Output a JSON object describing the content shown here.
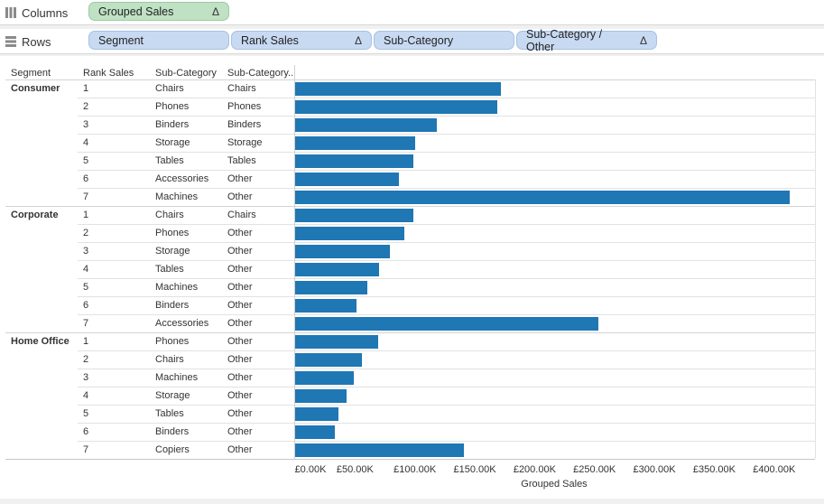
{
  "shelves": {
    "columns": {
      "label": "Columns",
      "pills": [
        {
          "label": "Grouped Sales",
          "delta": "Δ",
          "color": "green"
        }
      ]
    },
    "rows": {
      "label": "Rows",
      "pills": [
        {
          "label": "Segment",
          "delta": "",
          "color": "blue"
        },
        {
          "label": "Rank Sales",
          "delta": "Δ",
          "color": "blue"
        },
        {
          "label": "Sub-Category",
          "delta": "",
          "color": "blue"
        },
        {
          "label": "Sub-Category / Other",
          "delta": "Δ",
          "color": "blue"
        }
      ]
    }
  },
  "chart_data": {
    "type": "bar",
    "orientation": "horizontal",
    "bar_color": "#1f77b4",
    "row_headers": [
      "Segment",
      "Rank Sales",
      "Sub-Category",
      "Sub-Category.."
    ],
    "xlabel": "Grouped Sales",
    "xlim": [
      0,
      420000
    ],
    "x_ticks": [
      0,
      50000,
      100000,
      150000,
      200000,
      250000,
      300000,
      350000,
      400000
    ],
    "x_tick_labels": [
      "£0.00K",
      "£50.00K",
      "£100.00K",
      "£150.00K",
      "£200.00K",
      "£250.00K",
      "£300.00K",
      "£350.00K",
      "£400.00K"
    ],
    "grid": false,
    "segments": [
      {
        "name": "Consumer",
        "rows": [
          {
            "rank": "1",
            "subcategory": "Chairs",
            "group": "Chairs",
            "value": 172000
          },
          {
            "rank": "2",
            "subcategory": "Phones",
            "group": "Phones",
            "value": 169000
          },
          {
            "rank": "3",
            "subcategory": "Binders",
            "group": "Binders",
            "value": 118000
          },
          {
            "rank": "4",
            "subcategory": "Storage",
            "group": "Storage",
            "value": 100000
          },
          {
            "rank": "5",
            "subcategory": "Tables",
            "group": "Tables",
            "value": 99000
          },
          {
            "rank": "6",
            "subcategory": "Accessories",
            "group": "Other",
            "value": 87000
          },
          {
            "rank": "7",
            "subcategory": "Machines",
            "group": "Other",
            "value": 413000
          }
        ]
      },
      {
        "name": "Corporate",
        "rows": [
          {
            "rank": "1",
            "subcategory": "Chairs",
            "group": "Chairs",
            "value": 99000
          },
          {
            "rank": "2",
            "subcategory": "Phones",
            "group": "Other",
            "value": 91000
          },
          {
            "rank": "3",
            "subcategory": "Storage",
            "group": "Other",
            "value": 79000
          },
          {
            "rank": "4",
            "subcategory": "Tables",
            "group": "Other",
            "value": 70000
          },
          {
            "rank": "5",
            "subcategory": "Machines",
            "group": "Other",
            "value": 60000
          },
          {
            "rank": "6",
            "subcategory": "Binders",
            "group": "Other",
            "value": 51000
          },
          {
            "rank": "7",
            "subcategory": "Accessories",
            "group": "Other",
            "value": 253000
          }
        ]
      },
      {
        "name": "Home Office",
        "rows": [
          {
            "rank": "1",
            "subcategory": "Phones",
            "group": "Other",
            "value": 69000
          },
          {
            "rank": "2",
            "subcategory": "Chairs",
            "group": "Other",
            "value": 56000
          },
          {
            "rank": "3",
            "subcategory": "Machines",
            "group": "Other",
            "value": 49000
          },
          {
            "rank": "4",
            "subcategory": "Storage",
            "group": "Other",
            "value": 43000
          },
          {
            "rank": "5",
            "subcategory": "Tables",
            "group": "Other",
            "value": 36000
          },
          {
            "rank": "6",
            "subcategory": "Binders",
            "group": "Other",
            "value": 33000
          },
          {
            "rank": "7",
            "subcategory": "Copiers",
            "group": "Other",
            "value": 141000
          }
        ]
      }
    ]
  }
}
